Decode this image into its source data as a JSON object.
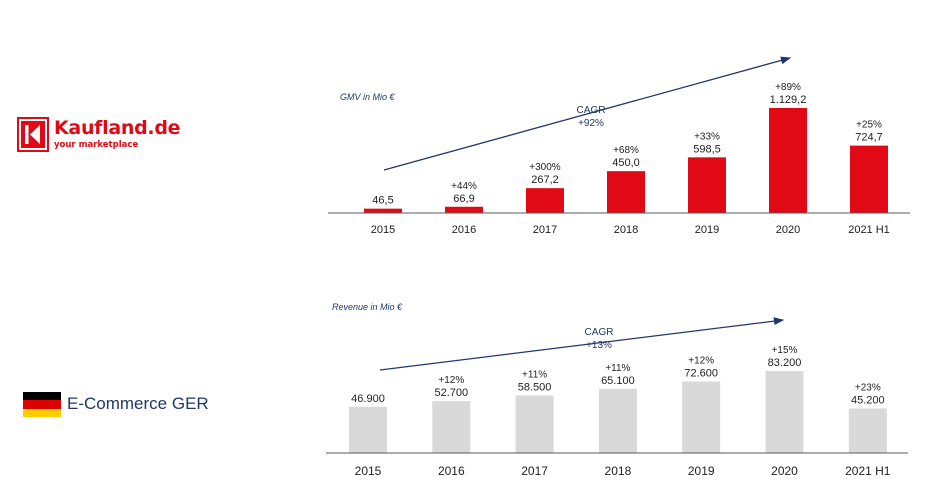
{
  "brand": {
    "name": "Kaufland.de",
    "tagline": "your marketplace",
    "color": "#e10915"
  },
  "market": {
    "label": "E-Commerce GER",
    "flag_colors": [
      "#000000",
      "#dd0000",
      "#ffce00"
    ]
  },
  "chart_data": [
    {
      "type": "bar",
      "title": "GMV in Mio €",
      "color": "#e10915",
      "categories": [
        "2015",
        "2016",
        "2017",
        "2018",
        "2019",
        "2020",
        "2021 H1"
      ],
      "values": [
        46.5,
        66.9,
        267.2,
        450.0,
        598.5,
        1129.2,
        724.7
      ],
      "value_labels": [
        "46,5",
        "66,9",
        "267,2",
        "450,0",
        "598,5",
        "1.129,2",
        "724,7"
      ],
      "growth_labels": [
        "",
        "+44%",
        "+300%",
        "+68%",
        "+33%",
        "+89%",
        "+25%"
      ],
      "cagr": {
        "label": "CAGR",
        "value": "+92%"
      },
      "ylim": [
        0,
        1129.2
      ]
    },
    {
      "type": "bar",
      "title": "Revenue in Mio €",
      "color": "#d9d9d9",
      "categories": [
        "2015",
        "2016",
        "2017",
        "2018",
        "2019",
        "2020",
        "2021 H1"
      ],
      "values": [
        46900,
        52700,
        58500,
        65100,
        72600,
        83200,
        45200
      ],
      "value_labels": [
        "46.900",
        "52.700",
        "58.500",
        "65.100",
        "72.600",
        "83.200",
        "45.200"
      ],
      "growth_labels": [
        "",
        "+12%",
        "+11%",
        "+11%",
        "+12%",
        "+15%",
        "+23%"
      ],
      "cagr": {
        "label": "CAGR",
        "value": "+13%"
      },
      "ylim": [
        0,
        83200
      ]
    }
  ]
}
